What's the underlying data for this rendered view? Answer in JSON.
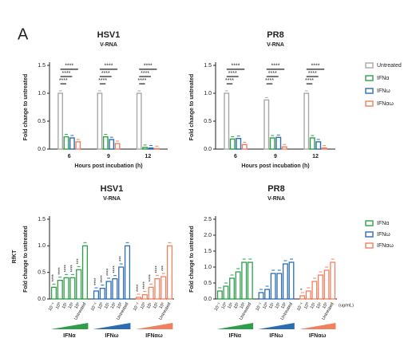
{
  "panel_label": "A",
  "side_label": "RfKT",
  "chart_data": [
    {
      "type": "grouped_bar",
      "title": "HSV1",
      "subtitle": "V-RNA",
      "xlabel": "Hours post incubation (h)",
      "ylabel": "Fold change to untreated",
      "categories": [
        "6",
        "9",
        "12"
      ],
      "series": [
        {
          "name": "Untreated",
          "color": "#a8a8a8",
          "values": [
            1.0,
            1.0,
            1.0
          ]
        },
        {
          "name": "IFNα",
          "color": "#2e9e4a",
          "values": [
            0.22,
            0.22,
            0.03
          ]
        },
        {
          "name": "IFNω",
          "color": "#2b6db3",
          "values": [
            0.2,
            0.17,
            0.02
          ]
        },
        {
          "name": "IFNαω",
          "color": "#f08060",
          "values": [
            0.13,
            0.1,
            0.01
          ]
        }
      ],
      "significance": [
        [
          "****",
          "****",
          "****"
        ],
        [
          "****",
          "****",
          "****"
        ],
        [
          "****",
          "****",
          "****"
        ]
      ],
      "ylim": [
        0,
        1.5
      ],
      "yticks": [
        {
          "value": 0,
          "label": "0.0"
        },
        0.5,
        {
          "value": 1,
          "label": "1.0"
        },
        1.5
      ],
      "legend": false
    },
    {
      "type": "grouped_bar",
      "title": "PR8",
      "subtitle": "V-RNA",
      "xlabel": "Hours post incubation (h)",
      "ylabel": "Fold change to untreated",
      "categories": [
        "6",
        "9",
        "12"
      ],
      "series": [
        {
          "name": "Untreated",
          "color": "#a8a8a8",
          "values": [
            1.0,
            0.88,
            1.0
          ]
        },
        {
          "name": "IFNα",
          "color": "#2e9e4a",
          "values": [
            0.18,
            0.2,
            0.2
          ]
        },
        {
          "name": "IFNω",
          "color": "#2b6db3",
          "values": [
            0.19,
            0.21,
            0.13
          ]
        },
        {
          "name": "IFNαω",
          "color": "#f08060",
          "values": [
            0.08,
            0.04,
            0.02
          ]
        }
      ],
      "significance": [
        [
          "****",
          "****",
          "****"
        ],
        [
          "****",
          "****",
          "****"
        ],
        [
          "****",
          "****",
          "****"
        ]
      ],
      "ylim": [
        0,
        1.5
      ],
      "yticks": [
        {
          "value": 0,
          "label": "0.0"
        },
        0.5,
        {
          "value": 1,
          "label": "1.0"
        },
        1.5
      ],
      "legend": true
    },
    {
      "type": "dose_bar",
      "title": "HSV1",
      "subtitle": "V-RNA",
      "ylabel": "Fold change to untreated",
      "groups": [
        {
          "name": "IFNα",
          "color": "#2e9e4a",
          "categories": [
            "10⁻¹",
            "10⁰",
            "10¹",
            "10²",
            "10³",
            "Untreated"
          ],
          "values": [
            0.22,
            0.35,
            0.4,
            0.4,
            0.55,
            1.0
          ],
          "significance": [
            "****",
            "****",
            "****",
            "****",
            "***",
            null
          ]
        },
        {
          "name": "IFNω",
          "color": "#2b6db3",
          "categories": [
            "10⁻¹",
            "10⁰",
            "10¹",
            "10²",
            "10³",
            "Untreated"
          ],
          "values": [
            0.15,
            0.2,
            0.33,
            0.38,
            0.6,
            1.0
          ],
          "significance": [
            "****",
            "****",
            "****",
            "****",
            "***",
            null
          ]
        },
        {
          "name": "IFNαω",
          "color": "#f08060",
          "categories": [
            "10⁻¹",
            "10⁰",
            "10¹",
            "10²",
            "10³",
            "Untreated"
          ],
          "values": [
            0.03,
            0.08,
            0.22,
            0.38,
            0.42,
            1.0
          ],
          "significance": [
            "****",
            "****",
            "****",
            "****",
            "***",
            null
          ]
        }
      ],
      "ylim": [
        0,
        1.5
      ],
      "yticks": [
        {
          "value": 0,
          "label": "0.0"
        },
        0.5,
        {
          "value": 1,
          "label": "1.0"
        },
        1.5
      ],
      "legend": false
    },
    {
      "type": "dose_bar",
      "title": "PR8",
      "subtitle": "V-RNA",
      "ylabel": "Fold change to untreated",
      "unit": "(ug/mL)",
      "groups": [
        {
          "name": "IFNα",
          "color": "#2e9e4a",
          "categories": [
            "10⁻¹",
            "10⁰",
            "10¹",
            "10²",
            "10³",
            "Untreated"
          ],
          "values": [
            0.25,
            0.4,
            0.65,
            0.85,
            1.15,
            1.15
          ],
          "significance": [
            null,
            null,
            null,
            null,
            null,
            null
          ]
        },
        {
          "name": "IFNω",
          "color": "#2b6db3",
          "categories": [
            "10⁻¹",
            "10⁰",
            "10¹",
            "10²",
            "10³",
            "Untreated"
          ],
          "values": [
            0.2,
            0.3,
            0.8,
            0.8,
            1.1,
            1.15
          ],
          "significance": [
            null,
            null,
            null,
            null,
            null,
            null
          ]
        },
        {
          "name": "IFNαω",
          "color": "#f08060",
          "categories": [
            "10⁻¹",
            "10⁰",
            "10¹",
            "10²",
            "10³",
            "Untreated"
          ],
          "values": [
            0.1,
            0.25,
            0.55,
            0.75,
            0.9,
            1.15
          ],
          "significance": [
            "*",
            null,
            null,
            null,
            null,
            null
          ]
        }
      ],
      "ylim": [
        0,
        2.5
      ],
      "yticks": [
        {
          "value": 0,
          "label": "0.0"
        },
        0.5,
        {
          "value": 1,
          "label": "1.0"
        },
        1.5,
        {
          "value": 2,
          "label": "2.0"
        },
        2.5
      ],
      "legend": true
    }
  ]
}
